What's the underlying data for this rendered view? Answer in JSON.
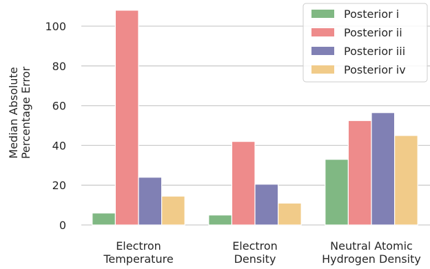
{
  "chart_data": {
    "type": "bar",
    "title": "",
    "xlabel": "",
    "ylabel": [
      "Median Absolute",
      "Percentage Error"
    ],
    "ylim": [
      0,
      110
    ],
    "yticks": [
      0,
      20,
      40,
      60,
      80,
      100
    ],
    "grid": "horizontal",
    "legend_position": "top-right",
    "categories": [
      [
        "Electron",
        "Temperature"
      ],
      [
        "Electron",
        "Density"
      ],
      [
        "Neutral Atomic",
        "Hydrogen Density"
      ]
    ],
    "series": [
      {
        "name": "Posterior i",
        "color": "#80b883",
        "values": [
          6,
          5,
          33
        ]
      },
      {
        "name": "Posterior ii",
        "color": "#ee8b8b",
        "values": [
          108,
          42,
          52.5
        ]
      },
      {
        "name": "Posterior iii",
        "color": "#8080b4",
        "values": [
          24,
          20.5,
          56.5
        ]
      },
      {
        "name": "Posterior iv",
        "color": "#f1cb89",
        "values": [
          14.5,
          11,
          45
        ]
      }
    ]
  }
}
